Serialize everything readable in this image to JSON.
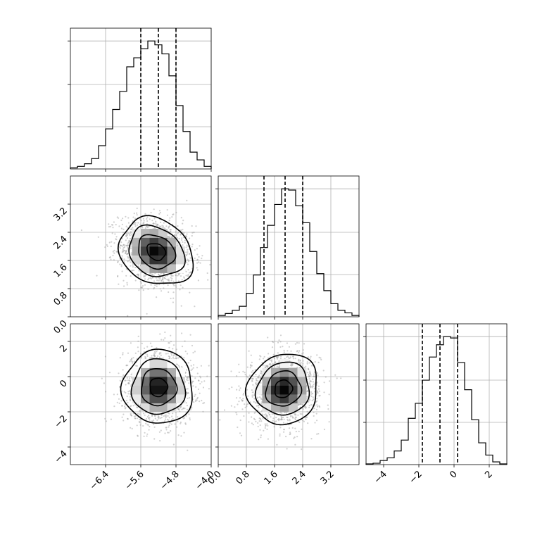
{
  "chart_data": {
    "type": "corner",
    "title": "",
    "parameters": [
      {
        "label": "",
        "range": [
          -7.2,
          -4.0
        ],
        "ticks": [
          -6.4,
          -5.6,
          -4.8,
          -4.0
        ],
        "tick_labels": [
          "−6.4",
          "−5.6",
          "−4.8",
          "−4.0"
        ],
        "quantiles": [
          -5.6,
          -5.2,
          -4.8
        ],
        "hist": [
          0.008,
          0.02,
          0.04,
          0.08,
          0.18,
          0.31,
          0.46,
          0.6,
          0.79,
          0.86,
          0.93,
          0.99,
          0.96,
          0.89,
          0.72,
          0.49,
          0.29,
          0.13,
          0.07,
          0.02
        ]
      },
      {
        "label": "",
        "range": [
          0.0,
          4.0
        ],
        "ticks": [
          0.0,
          0.8,
          1.6,
          2.4,
          3.2
        ],
        "tick_labels": [
          "0.0",
          "0.8",
          "1.6",
          "2.4",
          "3.2"
        ],
        "quantiles": [
          1.3,
          1.9,
          2.4
        ],
        "hist": [
          0.01,
          0.025,
          0.05,
          0.08,
          0.18,
          0.32,
          0.53,
          0.7,
          0.86,
          0.98,
          0.97,
          0.85,
          0.72,
          0.5,
          0.33,
          0.2,
          0.1,
          0.05,
          0.03,
          0.01
        ]
      },
      {
        "label": "",
        "range": [
          -5.0,
          3.0
        ],
        "ticks": [
          -4,
          -2,
          0,
          2
        ],
        "tick_labels": [
          "−4",
          "−2",
          "0",
          "2"
        ],
        "quantiles": [
          -1.8,
          -0.8,
          0.2
        ],
        "hist": [
          0.005,
          0.01,
          0.03,
          0.05,
          0.1,
          0.18,
          0.34,
          0.45,
          0.62,
          0.79,
          0.88,
          0.94,
          0.93,
          0.75,
          0.55,
          0.33,
          0.16,
          0.07,
          0.02,
          0.005
        ]
      }
    ],
    "pairs": [
      {
        "x_param": 0,
        "y_param": 1,
        "mean": [
          -5.25,
          1.85
        ],
        "sd": [
          0.42,
          0.48
        ],
        "rho": -0.2,
        "contour_levels": [
          0.5,
          1.0,
          1.5,
          2.0
        ]
      },
      {
        "x_param": 0,
        "y_param": 2,
        "mean": [
          -5.2,
          -0.6
        ],
        "sd": [
          0.4,
          1.05
        ],
        "rho": 0.0,
        "contour_levels": [
          0.5,
          1.0,
          1.5,
          2.0
        ]
      },
      {
        "x_param": 1,
        "y_param": 2,
        "mean": [
          1.85,
          -0.7
        ],
        "sd": [
          0.5,
          1.0
        ],
        "rho": 0.08,
        "contour_levels": [
          0.5,
          1.0,
          1.5,
          2.0
        ]
      }
    ],
    "quantile_style": "dashed",
    "grid": true,
    "colors": {
      "hist": "#000000",
      "scatter": "#9a9a9a",
      "contour": "#000000",
      "grid": "#b0b0b0"
    }
  }
}
